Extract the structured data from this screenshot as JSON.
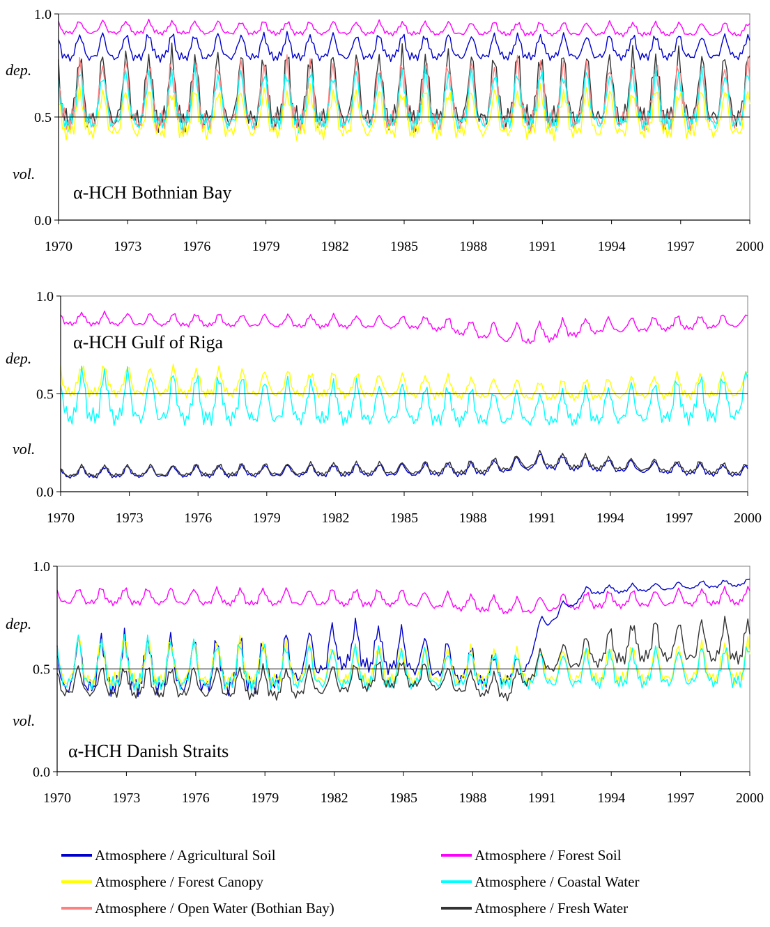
{
  "figure": {
    "side_labels": {
      "dep": "dep.",
      "vol": "vol."
    }
  },
  "chart_data": [
    {
      "type": "line",
      "title": "α-HCH Bothnian Bay",
      "xlabel": "",
      "ylabel": "",
      "xlim": [
        1970,
        2000
      ],
      "ylim": [
        0.0,
        1.0
      ],
      "x_ticks": [
        "1970",
        "1973",
        "1976",
        "1979",
        "1982",
        "1985",
        "1988",
        "1991",
        "1994",
        "1997",
        "2000"
      ],
      "y_ticks": [
        "0.0",
        "0.5",
        "1.0"
      ],
      "reference_line": 0.5,
      "grid": false,
      "sampling": "monthly, 1970-01 to 2000-01",
      "series": [
        {
          "key": "forest_soil",
          "color": "#ff00ff",
          "profile": [
            {
              "year": 1970,
              "mean": 0.93,
              "amp": 0.04
            },
            {
              "year": 2000,
              "mean": 0.92,
              "amp": 0.04
            }
          ]
        },
        {
          "key": "agricultural_soil",
          "color": "#0000cc",
          "profile": [
            {
              "year": 1970,
              "mean": 0.83,
              "amp": 0.08
            },
            {
              "year": 2000,
              "mean": 0.83,
              "amp": 0.07
            }
          ]
        },
        {
          "key": "fresh_water",
          "color": "#333333",
          "profile": [
            {
              "year": 1970,
              "mean": 0.6,
              "amp": 0.22
            },
            {
              "year": 2000,
              "mean": 0.61,
              "amp": 0.21
            }
          ]
        },
        {
          "key": "open_water",
          "color": "#ff8080",
          "profile": [
            {
              "year": 1970,
              "mean": 0.58,
              "amp": 0.2
            },
            {
              "year": 2000,
              "mean": 0.58,
              "amp": 0.19
            }
          ]
        },
        {
          "key": "coastal_water",
          "color": "#00ffff",
          "profile": [
            {
              "year": 1970,
              "mean": 0.56,
              "amp": 0.17
            },
            {
              "year": 2000,
              "mean": 0.56,
              "amp": 0.17
            }
          ]
        },
        {
          "key": "forest_canopy",
          "color": "#ffff00",
          "profile": [
            {
              "year": 1970,
              "mean": 0.5,
              "amp": 0.14
            },
            {
              "year": 2000,
              "mean": 0.5,
              "amp": 0.14
            }
          ]
        }
      ]
    },
    {
      "type": "line",
      "title": "α-HCH Gulf of Riga",
      "xlabel": "",
      "ylabel": "",
      "xlim": [
        1970,
        2000
      ],
      "ylim": [
        0.0,
        1.0
      ],
      "x_ticks": [
        "1970",
        "1973",
        "1976",
        "1979",
        "1982",
        "1985",
        "1988",
        "1991",
        "1994",
        "1997",
        "2000"
      ],
      "y_ticks": [
        "0.0",
        "0.5",
        "1.0"
      ],
      "reference_line": 0.5,
      "grid": false,
      "sampling": "monthly, 1970-01 to 2000-01",
      "series": [
        {
          "key": "forest_soil",
          "color": "#ff00ff",
          "profile": [
            {
              "year": 1970,
              "mean": 0.88,
              "amp": 0.04
            },
            {
              "year": 1986,
              "mean": 0.86,
              "amp": 0.04
            },
            {
              "year": 1989,
              "mean": 0.81,
              "amp": 0.06
            },
            {
              "year": 1990.5,
              "mean": 0.8,
              "amp": 0.07
            },
            {
              "year": 1993,
              "mean": 0.84,
              "amp": 0.05
            },
            {
              "year": 2000,
              "mean": 0.87,
              "amp": 0.04
            }
          ]
        },
        {
          "key": "forest_canopy",
          "color": "#ffff00",
          "profile": [
            {
              "year": 1970,
              "mean": 0.56,
              "amp": 0.1
            },
            {
              "year": 1986,
              "mean": 0.53,
              "amp": 0.07
            },
            {
              "year": 1991,
              "mean": 0.51,
              "amp": 0.06
            },
            {
              "year": 2000,
              "mean": 0.54,
              "amp": 0.08
            }
          ]
        },
        {
          "key": "coastal_water",
          "color": "#00ffff",
          "profile": [
            {
              "year": 1970,
              "mean": 0.47,
              "amp": 0.17
            },
            {
              "year": 1986,
              "mean": 0.43,
              "amp": 0.12
            },
            {
              "year": 1991,
              "mean": 0.41,
              "amp": 0.1
            },
            {
              "year": 2000,
              "mean": 0.47,
              "amp": 0.15
            }
          ]
        },
        {
          "key": "agricultural_soil",
          "color": "#0000cc",
          "profile": [
            {
              "year": 1970,
              "mean": 0.095,
              "amp": 0.035
            },
            {
              "year": 1988,
              "mean": 0.11,
              "amp": 0.04
            },
            {
              "year": 1991,
              "mean": 0.15,
              "amp": 0.05
            },
            {
              "year": 1994,
              "mean": 0.13,
              "amp": 0.04
            },
            {
              "year": 2000,
              "mean": 0.1,
              "amp": 0.035
            }
          ]
        },
        {
          "key": "fresh_water",
          "color": "#333333",
          "profile": [
            {
              "year": 1970,
              "mean": 0.1,
              "amp": 0.035
            },
            {
              "year": 1988,
              "mean": 0.12,
              "amp": 0.04
            },
            {
              "year": 1991,
              "mean": 0.16,
              "amp": 0.05
            },
            {
              "year": 1994,
              "mean": 0.14,
              "amp": 0.04
            },
            {
              "year": 2000,
              "mean": 0.11,
              "amp": 0.035
            }
          ]
        }
      ]
    },
    {
      "type": "line",
      "title": "α-HCH Danish Straits",
      "xlabel": "",
      "ylabel": "",
      "xlim": [
        1970,
        2000
      ],
      "ylim": [
        0.0,
        1.0
      ],
      "x_ticks": [
        "1970",
        "1973",
        "1976",
        "1979",
        "1982",
        "1985",
        "1988",
        "1991",
        "1994",
        "1997",
        "2000"
      ],
      "y_ticks": [
        "0.0",
        "0.5",
        "1.0"
      ],
      "reference_line": 0.5,
      "grid": false,
      "sampling": "monthly, 1970-01 to 2000-01",
      "series": [
        {
          "key": "forest_soil",
          "color": "#ff00ff",
          "profile": [
            {
              "year": 1970,
              "mean": 0.85,
              "amp": 0.05
            },
            {
              "year": 1985,
              "mean": 0.84,
              "amp": 0.05
            },
            {
              "year": 1990,
              "mean": 0.8,
              "amp": 0.05
            },
            {
              "year": 1993,
              "mean": 0.83,
              "amp": 0.05
            },
            {
              "year": 2000,
              "mean": 0.85,
              "amp": 0.05
            }
          ]
        },
        {
          "key": "agricultural_soil",
          "color": "#0000cc",
          "profile": [
            {
              "year": 1970,
              "mean": 0.5,
              "amp": 0.18
            },
            {
              "year": 1979,
              "mean": 0.5,
              "amp": 0.16
            },
            {
              "year": 1982.5,
              "mean": 0.6,
              "amp": 0.14
            },
            {
              "year": 1985,
              "mean": 0.57,
              "amp": 0.13
            },
            {
              "year": 1989,
              "mean": 0.48,
              "amp": 0.1
            },
            {
              "year": 1990.2,
              "mean": 0.5,
              "amp": 0.05
            },
            {
              "year": 1991,
              "mean": 0.72,
              "amp": 0.05
            },
            {
              "year": 1993,
              "mean": 0.88,
              "amp": 0.025
            },
            {
              "year": 2000,
              "mean": 0.92,
              "amp": 0.02
            }
          ]
        },
        {
          "key": "forest_canopy",
          "color": "#ffff00",
          "profile": [
            {
              "year": 1970,
              "mean": 0.52,
              "amp": 0.15
            },
            {
              "year": 1990,
              "mean": 0.5,
              "amp": 0.1
            },
            {
              "year": 2000,
              "mean": 0.52,
              "amp": 0.12
            }
          ]
        },
        {
          "key": "coastal_water",
          "color": "#00ffff",
          "profile": [
            {
              "year": 1970,
              "mean": 0.51,
              "amp": 0.16
            },
            {
              "year": 1990,
              "mean": 0.48,
              "amp": 0.1
            },
            {
              "year": 2000,
              "mean": 0.5,
              "amp": 0.12
            }
          ]
        },
        {
          "key": "fresh_water",
          "color": "#333333",
          "profile": [
            {
              "year": 1970,
              "mean": 0.43,
              "amp": 0.09
            },
            {
              "year": 1980,
              "mean": 0.42,
              "amp": 0.09
            },
            {
              "year": 1985,
              "mean": 0.47,
              "amp": 0.08
            },
            {
              "year": 1989.5,
              "mean": 0.4,
              "amp": 0.07
            },
            {
              "year": 1991,
              "mean": 0.53,
              "amp": 0.07
            },
            {
              "year": 1995,
              "mean": 0.62,
              "amp": 0.12
            },
            {
              "year": 2000,
              "mean": 0.62,
              "amp": 0.13
            }
          ]
        }
      ]
    }
  ],
  "legend": {
    "items": [
      {
        "key": "agricultural_soil",
        "label": "Atmosphere / Agricultural Soil",
        "color": "#0000cc"
      },
      {
        "key": "forest_soil",
        "label": "Atmosphere / Forest Soil",
        "color": "#ff00ff"
      },
      {
        "key": "forest_canopy",
        "label": "Atmosphere / Forest Canopy",
        "color": "#ffff00"
      },
      {
        "key": "coastal_water",
        "label": "Atmosphere / Coastal Water",
        "color": "#00ffff"
      },
      {
        "key": "open_water",
        "label": "Atmosphere / Open Water (Bothian Bay)",
        "color": "#ff8080"
      },
      {
        "key": "fresh_water",
        "label": "Atmosphere / Fresh Water",
        "color": "#333333"
      }
    ]
  }
}
